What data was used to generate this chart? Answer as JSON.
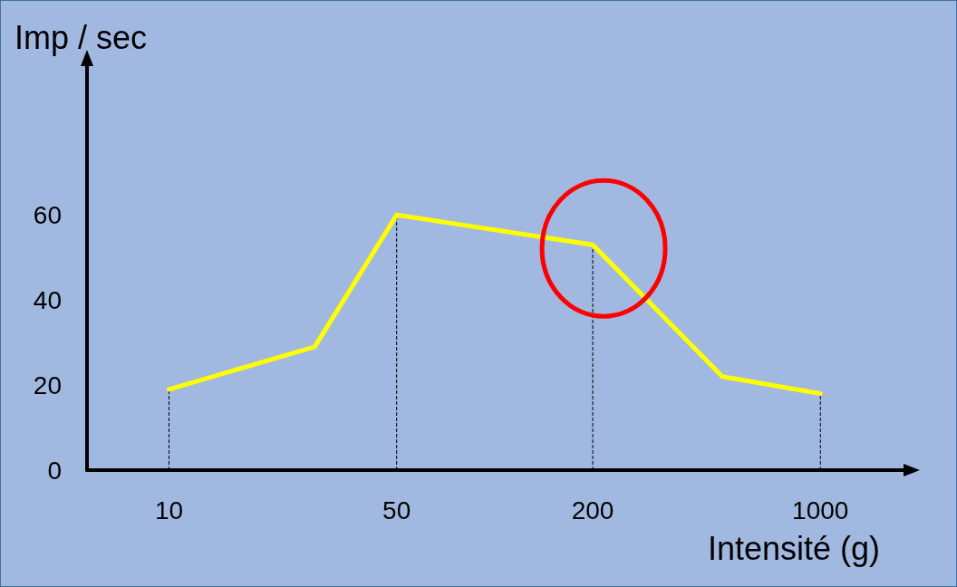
{
  "chart_data": {
    "type": "line",
    "xlabel": "Intensité (g)",
    "ylabel": "Imp / sec",
    "log": "x",
    "xlim": [
      5.6,
      1800
    ],
    "xticks": [
      10,
      50,
      200,
      1000
    ],
    "ylim": [
      0,
      95
    ],
    "yticks": [
      0,
      20,
      40,
      60
    ],
    "x": [
      10,
      28,
      50,
      200,
      500,
      1000
    ],
    "series": [
      {
        "color": "#ffff00",
        "values": [
          19,
          29,
          60,
          53,
          22,
          18
        ]
      }
    ],
    "ref_lines": [
      {
        "axis": "x",
        "value": 10,
        "color": "#000000",
        "line_style": "dashed"
      },
      {
        "axis": "x",
        "value": 50,
        "color": "#000000",
        "line_style": "dashed"
      },
      {
        "axis": "x",
        "value": 200,
        "color": "#000000",
        "line_style": "dashed"
      },
      {
        "axis": "x",
        "value": 1000,
        "color": "#000000",
        "line_style": "dashed"
      }
    ],
    "grid": false,
    "marker": "none",
    "line_style": "solid"
  }
}
